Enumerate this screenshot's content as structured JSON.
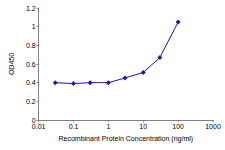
{
  "chart_data": {
    "type": "line",
    "x_label": "Recombinant Protein Concentration (ng/ml)",
    "y_label": "OD450",
    "x": [
      0.03,
      0.1,
      0.3,
      1,
      3,
      10,
      30,
      100
    ],
    "values": [
      0.4,
      0.39,
      0.4,
      0.4,
      0.45,
      0.51,
      0.67,
      1.05
    ],
    "color": "#1a1aa6",
    "marker": "diamond",
    "log": "x",
    "xlim": [
      0.01,
      1000
    ],
    "xticks": [
      0.01,
      0.1,
      1,
      10,
      100,
      1000
    ],
    "ylim": [
      0,
      1.2
    ],
    "yticks": [
      0,
      0.2,
      0.4,
      0.6,
      0.8,
      1,
      1.2
    ],
    "grid": false
  }
}
